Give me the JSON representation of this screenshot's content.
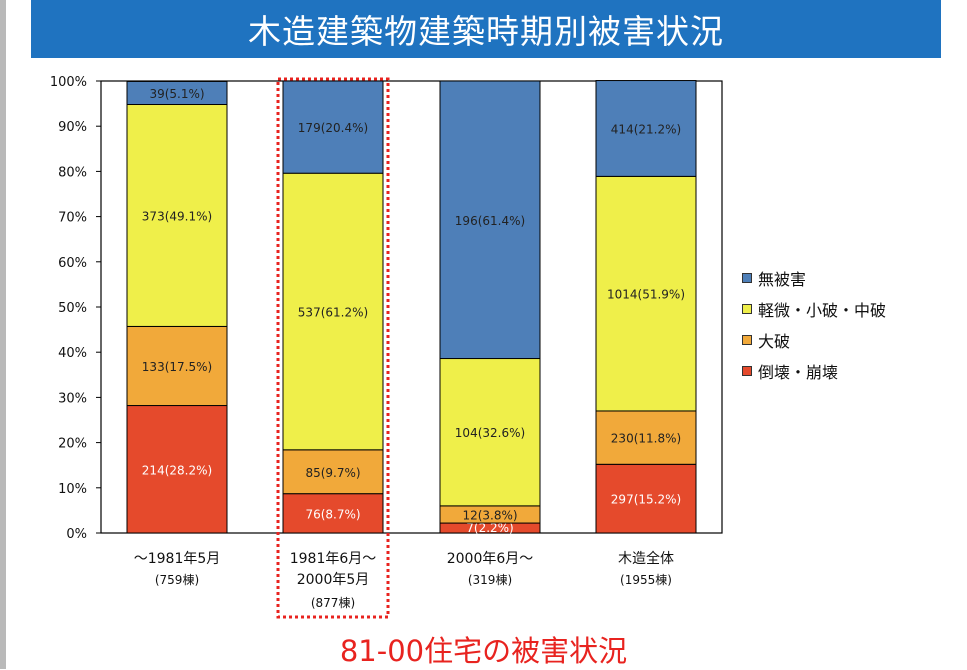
{
  "title": "木造建築物建築時期別被害状況",
  "caption": "81-00住宅の被害状況",
  "colors": {
    "title_bg": "#1f73c0",
    "highlight": "#e8231f",
    "series": [
      "#e54a2c",
      "#f1a93a",
      "#efef4a",
      "#4e7fb8"
    ]
  },
  "chart_data": {
    "type": "bar",
    "stacked": true,
    "ylim": [
      0,
      100
    ],
    "yticks": [
      "0%",
      "10%",
      "20%",
      "30%",
      "40%",
      "50%",
      "60%",
      "70%",
      "80%",
      "90%",
      "100%"
    ],
    "categories": [
      {
        "line1": "～1981年5月",
        "line2": "",
        "count": "(759棟)",
        "highlighted": false
      },
      {
        "line1": "1981年6月～",
        "line2": "2000年5月",
        "count": "(877棟)",
        "highlighted": true
      },
      {
        "line1": "2000年6月～",
        "line2": "",
        "count": "(319棟)",
        "highlighted": false
      },
      {
        "line1": "木造全体",
        "line2": "",
        "count": "(1955棟)",
        "highlighted": false
      }
    ],
    "series": [
      {
        "name": "倒壊・崩壊",
        "values": [
          28.2,
          8.7,
          2.2,
          15.2
        ],
        "labels": [
          "214(28.2%)",
          "76(8.7%)",
          "7(2.2%)",
          "297(15.2%)"
        ]
      },
      {
        "name": "大破",
        "values": [
          17.5,
          9.7,
          3.8,
          11.8
        ],
        "labels": [
          "133(17.5%)",
          "85(9.7%)",
          "12(3.8%)",
          "230(11.8%)"
        ]
      },
      {
        "name": "軽微・小破・中破",
        "values": [
          49.1,
          61.2,
          32.6,
          51.9
        ],
        "labels": [
          "373(49.1%)",
          "537(61.2%)",
          "104(32.6%)",
          "1014(51.9%)"
        ]
      },
      {
        "name": "無被害",
        "values": [
          5.1,
          20.4,
          61.4,
          21.2
        ],
        "labels": [
          "39(5.1%)",
          "179(20.4%)",
          "196(61.4%)",
          "414(21.2%)"
        ]
      }
    ],
    "legend": {
      "placement": "right",
      "order": [
        "無被害",
        "軽微・小破・中破",
        "大破",
        "倒壊・崩壊"
      ]
    }
  }
}
